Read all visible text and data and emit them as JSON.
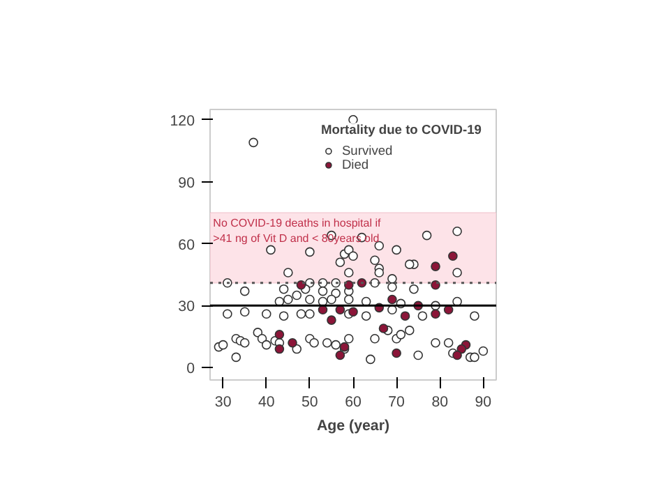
{
  "chart_data": {
    "type": "scatter",
    "legend_title": "Mortality due to COVID-19",
    "xlabel": "Age (year)",
    "xlim": [
      27,
      93
    ],
    "ylim": [
      -6,
      125
    ],
    "xticks": [
      30,
      40,
      50,
      60,
      70,
      80,
      90
    ],
    "yticks": [
      0,
      30,
      60,
      90,
      120
    ],
    "grid": false,
    "legend": "top right",
    "marker": "circle",
    "series": [
      {
        "name": "Survived",
        "color": "#ffffff",
        "x": [
          60,
          37,
          84,
          55,
          62,
          77,
          41,
          50,
          58,
          59,
          60,
          66,
          70,
          74,
          57,
          65,
          66,
          45,
          59,
          66,
          73,
          84,
          31,
          50,
          53,
          56,
          65,
          69,
          74,
          35,
          44,
          49,
          53,
          56,
          59,
          69,
          43,
          45,
          47,
          50,
          53,
          55,
          59,
          63,
          71,
          79,
          84,
          31,
          35,
          40,
          44,
          48,
          50,
          59,
          63,
          69,
          76,
          88,
          29,
          30,
          33,
          34,
          35,
          38,
          39,
          40,
          42,
          43,
          47,
          50,
          51,
          54,
          56,
          58,
          59,
          65,
          68,
          70,
          71,
          73,
          79,
          82,
          83,
          87,
          88,
          90,
          33,
          64,
          75
        ],
        "values": [
          120,
          109,
          66,
          64,
          63,
          64,
          57,
          56,
          55,
          57,
          54,
          59,
          57,
          50,
          51,
          52,
          48,
          46,
          46,
          46,
          50,
          46,
          41,
          41,
          41,
          41,
          41,
          43,
          38,
          37,
          38,
          38,
          37,
          36,
          37,
          39,
          32,
          33,
          35,
          33,
          32,
          33,
          33,
          32,
          31,
          30,
          32,
          26,
          27,
          26,
          25,
          26,
          26,
          26,
          25,
          28,
          25,
          25,
          10,
          11,
          14,
          13,
          12,
          17,
          14,
          11,
          13,
          12,
          9,
          14,
          12,
          12,
          11,
          9,
          14,
          14,
          18,
          14,
          16,
          18,
          12,
          12,
          7,
          5,
          5,
          8,
          5,
          4,
          6
        ]
      },
      {
        "name": "Died",
        "color": "#8b1538",
        "x": [
          83,
          79,
          48,
          59,
          62,
          79,
          69,
          75,
          53,
          55,
          57,
          60,
          66,
          72,
          79,
          82,
          43,
          46,
          58,
          67,
          86,
          85,
          84,
          43,
          57,
          70
        ],
        "values": [
          54,
          49,
          40,
          40,
          41,
          40,
          33,
          30,
          28,
          23,
          28,
          27,
          29,
          25,
          26,
          28,
          16,
          12,
          10,
          19,
          11,
          9,
          6,
          9,
          6,
          7
        ]
      }
    ],
    "ref_lines": [
      {
        "axis": "y",
        "value": 30,
        "color": "#000000",
        "line_style": "solid"
      },
      {
        "axis": "y",
        "value": 41,
        "color": "#555555",
        "line_style": "dotted"
      }
    ],
    "bands": [
      {
        "axis": "y",
        "from": 41,
        "to": 75,
        "color": "#fde3e8",
        "label": "No COVID-19 deaths in hospital if\n>41 ng of Vit D and < 80years old"
      }
    ]
  }
}
